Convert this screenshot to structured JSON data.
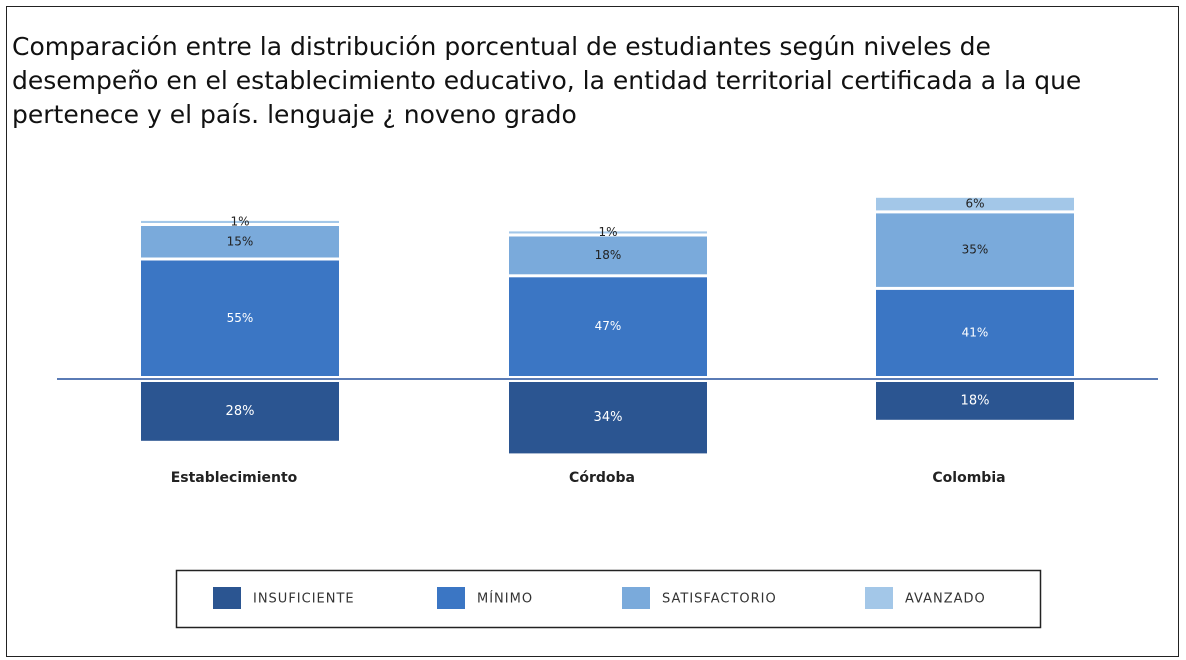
{
  "chart_data": {
    "type": "diverging-stacked-bar",
    "title": "Comparación entre la distribución porcentual de estudiantes según niveles de desempeño en el establecimiento educativo, la entidad territorial certificada a la que pertenece y el país. lenguaje ¿ noveno grado",
    "categories": [
      "Establecimiento",
      "Córdoba",
      "Colombia"
    ],
    "series": [
      {
        "name": "INSUFICIENTE",
        "color": "#2b5591",
        "values": [
          28,
          34,
          18
        ],
        "value_labels": [
          "28%",
          "34%",
          "18%"
        ]
      },
      {
        "name": "MÍNIMO",
        "color": "#3b76c4",
        "values": [
          55,
          47,
          41
        ],
        "value_labels": [
          "55%",
          "47%",
          "41%"
        ]
      },
      {
        "name": "SATISFACTORIO",
        "color": "#7aaadb",
        "values": [
          15,
          18,
          35
        ],
        "value_labels": [
          "15%",
          "18%",
          "35%"
        ]
      },
      {
        "name": "AVANZADO",
        "color": "#a3c7e8",
        "values": [
          1,
          1,
          6
        ],
        "value_labels": [
          "1%",
          "1%",
          "6%"
        ]
      }
    ]
  }
}
